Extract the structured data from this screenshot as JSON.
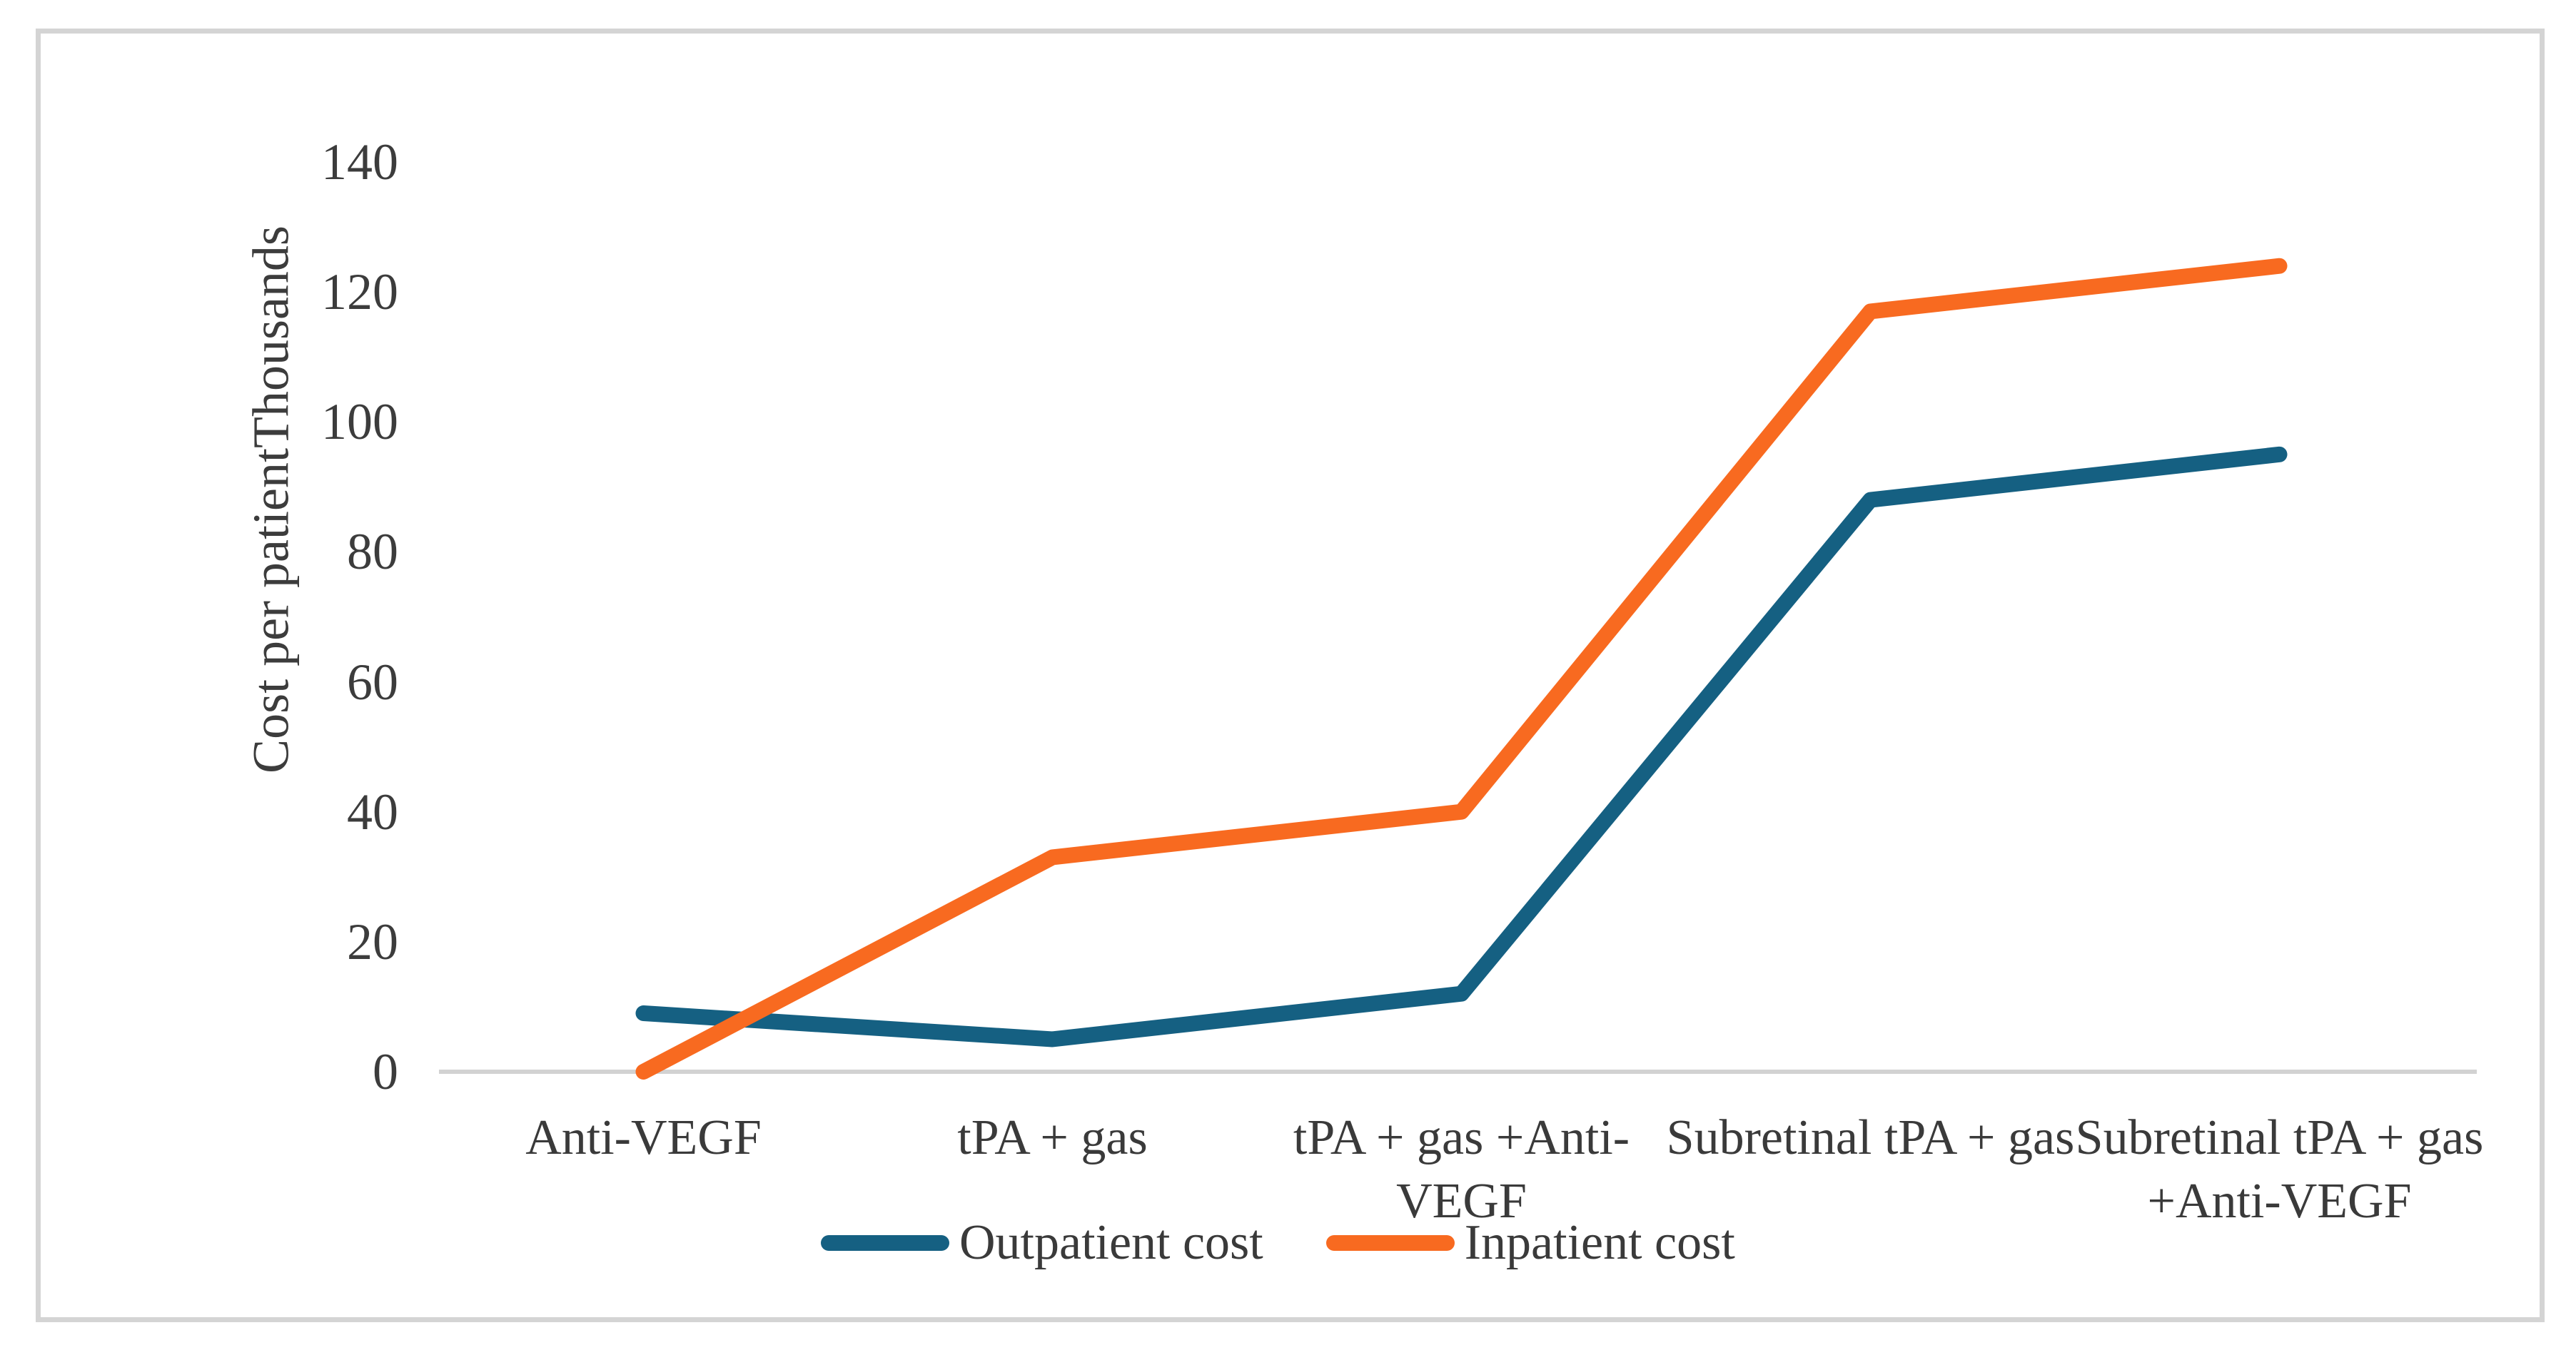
{
  "chart_data": {
    "type": "line",
    "title": "",
    "ylabel": "Cost per patient",
    "units_label": "Thousands",
    "xlabel": "",
    "categories": [
      "Anti-VEGF",
      "tPA + gas",
      "tPA + gas +Anti-VEGF",
      "Subretinal tPA + gas",
      "Subretinal tPA + gas +Anti-VEGF"
    ],
    "series": [
      {
        "name": "Outpatient cost",
        "color": "#156082",
        "values": [
          9,
          5,
          12,
          88,
          95
        ]
      },
      {
        "name": "Inpatient cost",
        "color": "#f86a20",
        "values": [
          0,
          33,
          40,
          117,
          124
        ]
      }
    ],
    "ylim": [
      0,
      140
    ],
    "yticks": [
      0,
      20,
      40,
      60,
      80,
      100,
      120,
      140
    ],
    "grid": false,
    "legend_position": "bottom",
    "axis_line_color": "#d2d2d2",
    "text_color": "#3c3c3c"
  }
}
